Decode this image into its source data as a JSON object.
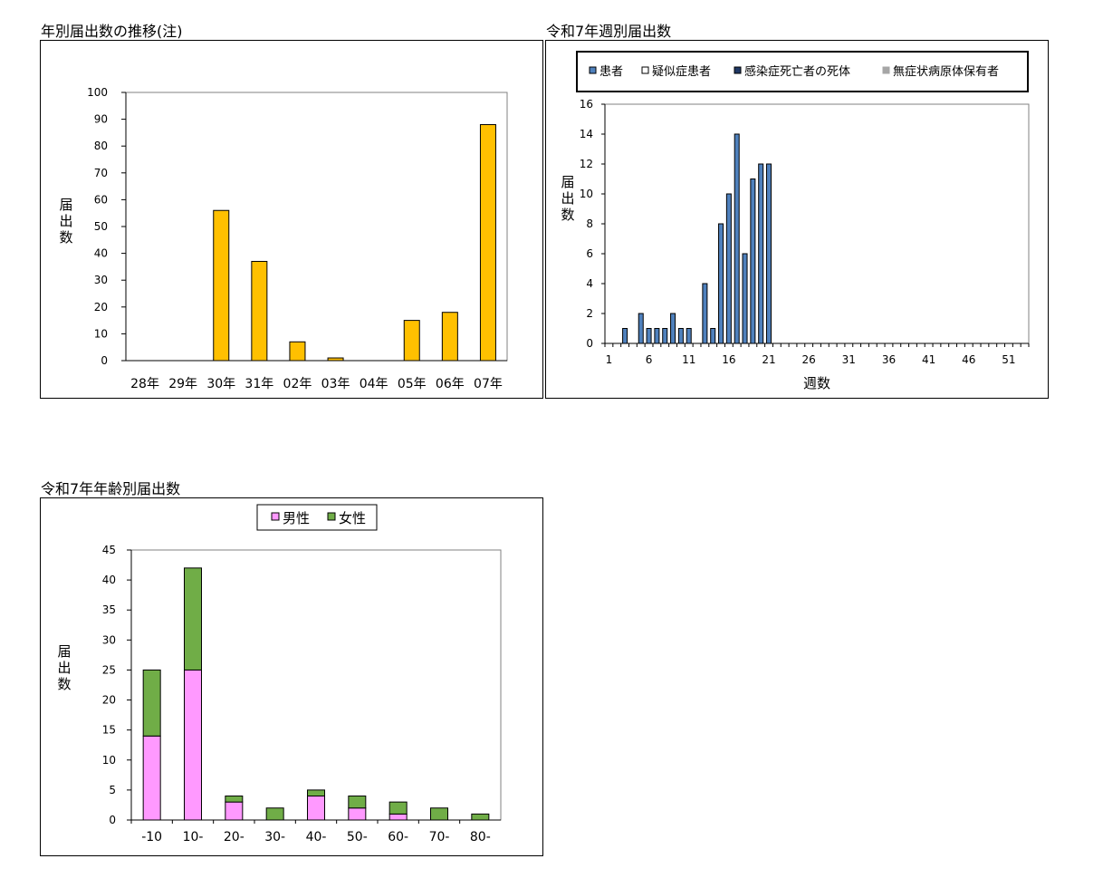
{
  "chart_data": [
    {
      "id": "annual",
      "type": "bar",
      "title": "年別届出数の推移(注)",
      "ylabel": "届出数",
      "xlabel": "",
      "categories": [
        "28年",
        "29年",
        "30年",
        "31年",
        "02年",
        "03年",
        "04年",
        "05年",
        "06年",
        "07年"
      ],
      "values": [
        0,
        0,
        56,
        37,
        7,
        1,
        0,
        15,
        18,
        88
      ],
      "ylim": [
        0,
        100
      ],
      "yticks": [
        "0",
        "10",
        "20",
        "30",
        "40",
        "50",
        "60",
        "70",
        "80",
        "90",
        "100"
      ],
      "color": "#ffc000",
      "grid": false
    },
    {
      "id": "weekly",
      "type": "bar",
      "title": "令和7年週別届出数",
      "ylabel": "届出数",
      "xlabel": "週数",
      "x_range": [
        1,
        53
      ],
      "xticks": [
        "1",
        "6",
        "11",
        "16",
        "21",
        "26",
        "31",
        "36",
        "41",
        "46",
        "51"
      ],
      "yticks": [
        "0",
        "2",
        "4",
        "6",
        "8",
        "10",
        "12",
        "14",
        "16"
      ],
      "ylim": [
        0,
        16
      ],
      "legend_position": "top",
      "series": [
        {
          "name": "患者",
          "color": "#4f81bd",
          "points": [
            [
              3,
              1
            ],
            [
              5,
              2
            ],
            [
              6,
              1
            ],
            [
              7,
              1
            ],
            [
              8,
              1
            ],
            [
              9,
              2
            ],
            [
              10,
              1
            ],
            [
              11,
              1
            ],
            [
              13,
              4
            ],
            [
              14,
              1
            ],
            [
              15,
              8
            ],
            [
              16,
              10
            ],
            [
              17,
              14
            ],
            [
              18,
              6
            ],
            [
              19,
              11
            ],
            [
              20,
              12
            ],
            [
              21,
              12
            ]
          ]
        },
        {
          "name": "疑似症患者",
          "color": "#ffffff",
          "points": []
        },
        {
          "name": "感染症死亡者の死体",
          "color": "#1f3864",
          "points": []
        },
        {
          "name": "無症状病原体保有者",
          "color": "#a6a6a6",
          "points": []
        }
      ],
      "grid": false
    },
    {
      "id": "age",
      "type": "bar",
      "stacked": true,
      "title": "令和7年年齢別届出数",
      "ylabel": "届出数",
      "xlabel": "",
      "categories": [
        "-10",
        "10-",
        "20-",
        "30-",
        "40-",
        "50-",
        "60-",
        "70-",
        "80-"
      ],
      "ylim": [
        0,
        45
      ],
      "yticks": [
        "0",
        "5",
        "10",
        "15",
        "20",
        "25",
        "30",
        "35",
        "40",
        "45"
      ],
      "legend_position": "top",
      "series": [
        {
          "name": "男性",
          "color": "#ff99ff",
          "values": [
            14,
            25,
            3,
            0,
            4,
            2,
            1,
            0,
            0
          ]
        },
        {
          "name": "女性",
          "color": "#70ad47",
          "values": [
            11,
            17,
            1,
            2,
            1,
            2,
            2,
            2,
            1
          ]
        }
      ],
      "grid": false
    }
  ]
}
